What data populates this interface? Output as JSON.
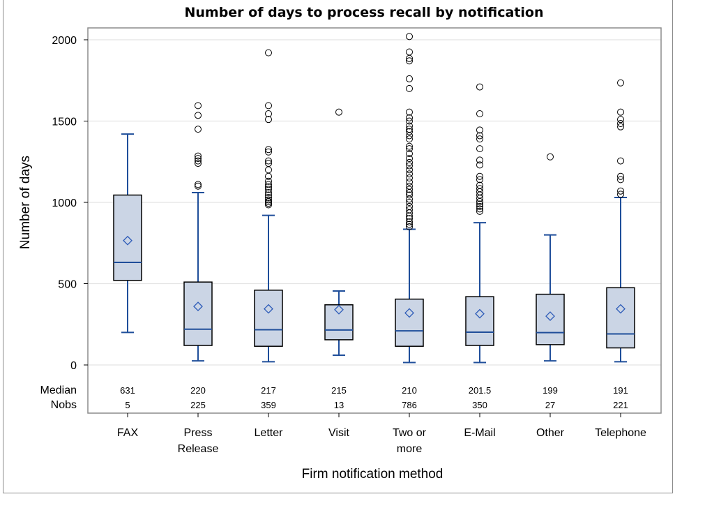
{
  "chart_data": {
    "type": "box",
    "title": "Number of days to process recall by notification",
    "xlabel": "Firm notification method",
    "ylabel": "Number of days",
    "ylim": [
      0,
      2050
    ],
    "yticks": [
      0,
      500,
      1000,
      1500,
      2000
    ],
    "grid": true,
    "stat_labels": [
      "Median",
      "Nobs"
    ],
    "colors": {
      "box_fill": "#cbd5e5",
      "whisker": "#1f4e9a",
      "median": "#1f4e9a",
      "mean_marker": "#2e5cb8",
      "outlier": "#000000",
      "grid": "#e3e3e3",
      "frame": "#8c8c8c"
    },
    "categories": [
      {
        "label_lines": [
          "FAX"
        ],
        "median_label": "631",
        "nobs": "5",
        "q1": 520,
        "median": 631,
        "q3": 1045,
        "whisker_low": 200,
        "whisker_high": 1420,
        "mean": 765,
        "outliers": []
      },
      {
        "label_lines": [
          "Press",
          "Release"
        ],
        "median_label": "220",
        "nobs": "225",
        "q1": 120,
        "median": 220,
        "q3": 510,
        "whisker_low": 25,
        "whisker_high": 1060,
        "mean": 360,
        "outliers": [
          1110,
          1100,
          1240,
          1255,
          1270,
          1285,
          1450,
          1535,
          1595
        ]
      },
      {
        "label_lines": [
          "Letter"
        ],
        "median_label": "217",
        "nobs": "359",
        "q1": 115,
        "median": 217,
        "q3": 460,
        "whisker_low": 20,
        "whisker_high": 920,
        "mean": 345,
        "outliers": [
          985,
          995,
          1005,
          1015,
          1030,
          1045,
          1060,
          1080,
          1095,
          1110,
          1130,
          1160,
          1200,
          1240,
          1255,
          1310,
          1325,
          1510,
          1545,
          1595,
          1920
        ]
      },
      {
        "label_lines": [
          "Visit"
        ],
        "median_label": "215",
        "nobs": "13",
        "q1": 155,
        "median": 215,
        "q3": 370,
        "whisker_low": 60,
        "whisker_high": 455,
        "mean": 340,
        "outliers": [
          1555
        ]
      },
      {
        "label_lines": [
          "Two or",
          "more"
        ],
        "median_label": "210",
        "nobs": "786",
        "q1": 115,
        "median": 210,
        "q3": 405,
        "whisker_low": 15,
        "whisker_high": 835,
        "mean": 320,
        "outliers": [
          850,
          865,
          880,
          900,
          915,
          935,
          955,
          975,
          1000,
          1020,
          1045,
          1060,
          1080,
          1100,
          1125,
          1150,
          1175,
          1200,
          1225,
          1245,
          1270,
          1300,
          1330,
          1345,
          1390,
          1410,
          1435,
          1450,
          1470,
          1500,
          1520,
          1555,
          1700,
          1760,
          1870,
          1885,
          1925,
          2020
        ]
      },
      {
        "label_lines": [
          "E-Mail"
        ],
        "median_label": "201.5",
        "nobs": "350",
        "q1": 120,
        "median": 201.5,
        "q3": 420,
        "whisker_low": 15,
        "whisker_high": 875,
        "mean": 315,
        "outliers": [
          945,
          960,
          975,
          990,
          1005,
          1025,
          1045,
          1065,
          1085,
          1105,
          1140,
          1160,
          1230,
          1260,
          1330,
          1390,
          1410,
          1445,
          1545,
          1710
        ]
      },
      {
        "label_lines": [
          "Other"
        ],
        "median_label": "199",
        "nobs": "27",
        "q1": 125,
        "median": 199,
        "q3": 435,
        "whisker_low": 25,
        "whisker_high": 800,
        "mean": 300,
        "outliers": [
          1280
        ]
      },
      {
        "label_lines": [
          "Telephone"
        ],
        "median_label": "191",
        "nobs": "221",
        "q1": 105,
        "median": 191,
        "q3": 475,
        "whisker_low": 20,
        "whisker_high": 1030,
        "mean": 345,
        "outliers": [
          1050,
          1070,
          1140,
          1160,
          1255,
          1465,
          1485,
          1510,
          1555,
          1735
        ]
      }
    ]
  }
}
